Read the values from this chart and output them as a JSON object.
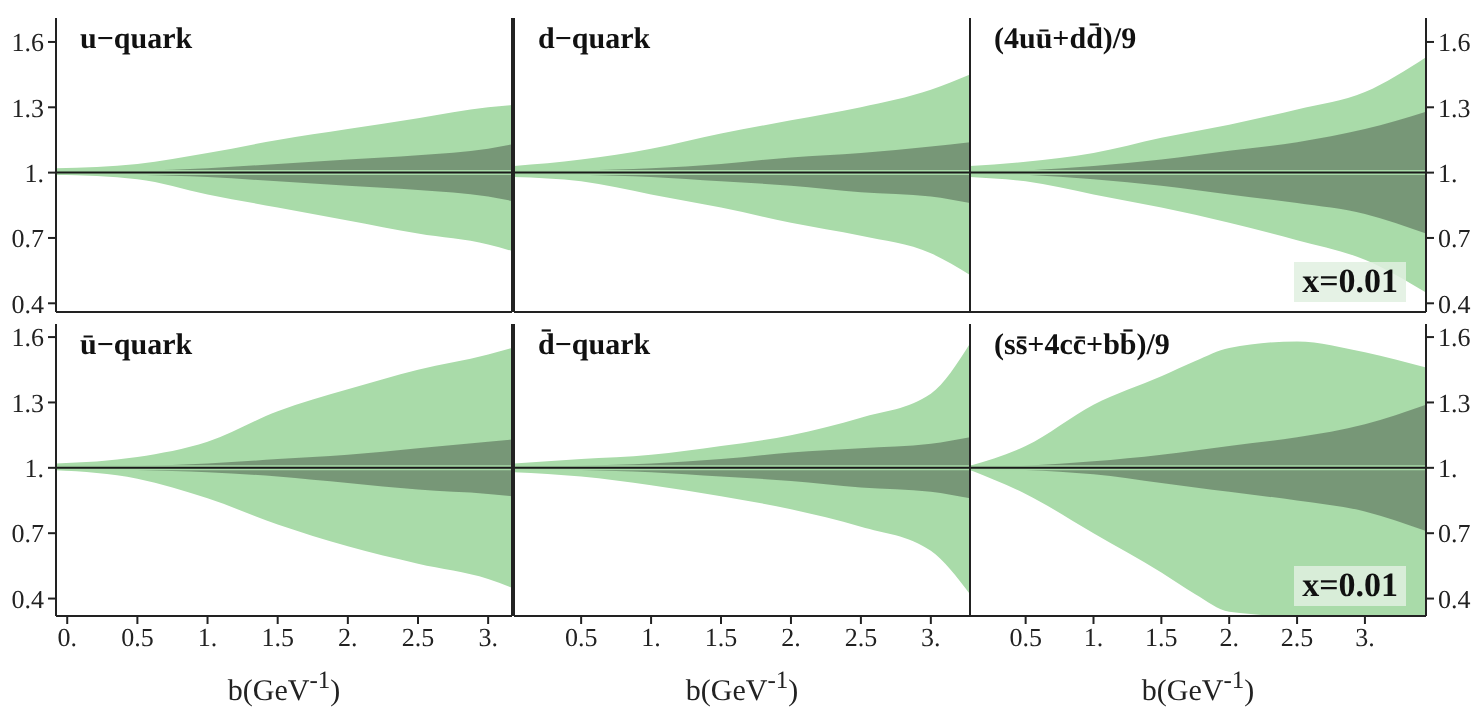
{
  "chart_data": [
    {
      "type": "line",
      "title": "u−quark",
      "x": [
        -0.08,
        0.5,
        1,
        1.5,
        2,
        2.5,
        3,
        3.17
      ],
      "xlim": [
        -0.08,
        3.17
      ],
      "xticks": [
        {
          "value": 0,
          "label": null
        },
        {
          "value": 0.5,
          "label": null
        },
        {
          "value": 1,
          "label": null
        },
        {
          "value": 1.5,
          "label": null
        },
        {
          "value": 2,
          "label": null
        },
        {
          "value": 2.5,
          "label": null
        },
        {
          "value": 3,
          "label": null
        }
      ],
      "ylim": [
        0.36,
        1.71
      ],
      "yticks": [
        0.4,
        0.7,
        {
          "value": 1,
          "label": "1."
        },
        1.3,
        1.6
      ],
      "tick_labels": "y",
      "series": [
        {
          "color": "#a9dba9",
          "values": [
            1,
            1,
            1,
            1,
            1,
            1,
            1,
            1
          ],
          "lower": [
            0.99,
            0.97,
            0.9,
            0.84,
            0.78,
            0.72,
            0.67,
            0.64
          ],
          "upper": [
            1.02,
            1.04,
            1.09,
            1.15,
            1.2,
            1.25,
            1.3,
            1.31
          ]
        },
        {
          "color": "#1a1a1a",
          "values": [
            1,
            1,
            1,
            1,
            1,
            1,
            1,
            1
          ],
          "lower": [
            1,
            0.99,
            0.98,
            0.96,
            0.94,
            0.92,
            0.89,
            0.87
          ],
          "upper": [
            1.01,
            1.01,
            1.02,
            1.04,
            1.06,
            1.08,
            1.11,
            1.13
          ]
        }
      ]
    },
    {
      "type": "line",
      "title": "d−quark",
      "x": [
        0.02,
        0.5,
        1,
        1.5,
        2,
        2.5,
        3,
        3.28
      ],
      "xlim": [
        0.02,
        3.28
      ],
      "xticks": [
        {
          "value": 0.5,
          "label": null
        },
        {
          "value": 1,
          "label": null
        },
        {
          "value": 1.5,
          "label": null
        },
        {
          "value": 2,
          "label": null
        },
        {
          "value": 2.5,
          "label": null
        },
        {
          "value": 3,
          "label": null
        }
      ],
      "ylim": [
        0.36,
        1.71
      ],
      "yticks": [
        {
          "value": 0.4,
          "label": null
        },
        {
          "value": 0.7,
          "label": null
        },
        {
          "value": 1,
          "label": null
        },
        {
          "value": 1.3,
          "label": null
        },
        {
          "value": 1.6,
          "label": null
        }
      ],
      "tick_labels": false,
      "series": [
        {
          "color": "#a9dba9",
          "values": [
            1,
            1,
            1,
            1,
            1,
            1,
            1,
            1
          ],
          "lower": [
            0.98,
            0.96,
            0.9,
            0.84,
            0.77,
            0.71,
            0.63,
            0.53
          ],
          "upper": [
            1.03,
            1.06,
            1.11,
            1.18,
            1.24,
            1.3,
            1.38,
            1.45
          ]
        },
        {
          "color": "#1a1a1a",
          "values": [
            1,
            1,
            1,
            1,
            1,
            1,
            1,
            1
          ],
          "lower": [
            1,
            0.99,
            0.98,
            0.96,
            0.94,
            0.91,
            0.89,
            0.86
          ],
          "upper": [
            1,
            1.01,
            1.02,
            1.04,
            1.07,
            1.09,
            1.12,
            1.14
          ]
        }
      ]
    },
    {
      "type": "line",
      "title": "(4uū+dd̄)/9",
      "annotations": [
        "x=0.01"
      ],
      "x": [
        0.09,
        0.5,
        1,
        1.5,
        2,
        2.5,
        3,
        3.45
      ],
      "xlim": [
        0.09,
        3.45
      ],
      "xticks": [
        {
          "value": 0.5,
          "label": null
        },
        {
          "value": 1,
          "label": null
        },
        {
          "value": 1.5,
          "label": null
        },
        {
          "value": 2,
          "label": null
        },
        {
          "value": 2.5,
          "label": null
        },
        {
          "value": 3,
          "label": null
        }
      ],
      "ylim": [
        0.36,
        1.71
      ],
      "yticks": [
        0.4,
        0.7,
        {
          "value": 1,
          "label": "1."
        },
        1.3,
        1.6
      ],
      "tick_labels": "y",
      "series": [
        {
          "color": "#a9dba9",
          "values": [
            1,
            1,
            1,
            1,
            1,
            1,
            1,
            1
          ],
          "lower": [
            0.98,
            0.96,
            0.9,
            0.84,
            0.77,
            0.69,
            0.6,
            0.45
          ],
          "upper": [
            1.03,
            1.05,
            1.09,
            1.16,
            1.22,
            1.29,
            1.37,
            1.53
          ]
        },
        {
          "color": "#1a1a1a",
          "values": [
            1,
            1,
            1,
            1,
            1,
            1,
            1,
            1
          ],
          "lower": [
            1,
            0.99,
            0.97,
            0.94,
            0.9,
            0.86,
            0.81,
            0.72
          ],
          "upper": [
            1,
            1.01,
            1.03,
            1.06,
            1.1,
            1.14,
            1.2,
            1.28
          ]
        }
      ]
    },
    {
      "type": "line",
      "title": "ū−quark",
      "xlabel": "b(GeV$^{-1}$)",
      "x": [
        -0.08,
        0.5,
        1,
        1.5,
        2,
        2.5,
        3,
        3.17
      ],
      "xlim": [
        -0.08,
        3.17
      ],
      "xticks": [
        {
          "value": 0,
          "label": "0."
        },
        0.5,
        {
          "value": 1,
          "label": "1."
        },
        1.5,
        {
          "value": 2,
          "label": "2."
        },
        2.5,
        {
          "value": 3,
          "label": "3."
        }
      ],
      "ylim": [
        0.32,
        1.66
      ],
      "yticks": [
        0.4,
        0.7,
        {
          "value": 1,
          "label": "1."
        },
        1.3,
        1.6
      ],
      "series": [
        {
          "color": "#a9dba9",
          "values": [
            1,
            1,
            1,
            1,
            1,
            1,
            1,
            1
          ],
          "lower": [
            0.99,
            0.95,
            0.86,
            0.74,
            0.64,
            0.56,
            0.49,
            0.45
          ],
          "upper": [
            1.02,
            1.05,
            1.12,
            1.26,
            1.36,
            1.45,
            1.52,
            1.55
          ]
        },
        {
          "color": "#1a1a1a",
          "values": [
            1,
            1,
            1,
            1,
            1,
            1,
            1,
            1
          ],
          "lower": [
            1,
            0.99,
            0.98,
            0.96,
            0.93,
            0.9,
            0.88,
            0.87
          ],
          "upper": [
            1.01,
            1.01,
            1.02,
            1.04,
            1.06,
            1.09,
            1.12,
            1.13
          ]
        }
      ]
    },
    {
      "type": "line",
      "title": "d̄−quark",
      "xlabel": "b(GeV$^{-1}$)",
      "x": [
        0.02,
        0.5,
        1,
        1.5,
        2,
        2.5,
        3,
        3.28
      ],
      "xlim": [
        0.02,
        3.28
      ],
      "xticks": [
        0.5,
        {
          "value": 1,
          "label": "1."
        },
        1.5,
        {
          "value": 2,
          "label": "2."
        },
        2.5,
        {
          "value": 3,
          "label": "3."
        }
      ],
      "ylim": [
        0.32,
        1.66
      ],
      "yticks": [
        {
          "value": 0.4,
          "label": null
        },
        {
          "value": 0.7,
          "label": null
        },
        {
          "value": 1,
          "label": null
        },
        {
          "value": 1.3,
          "label": null
        },
        {
          "value": 1.6,
          "label": null
        }
      ],
      "tick_labels": "x",
      "series": [
        {
          "color": "#a9dba9",
          "values": [
            1,
            1,
            1,
            1,
            1,
            1,
            1,
            1
          ],
          "lower": [
            0.98,
            0.96,
            0.92,
            0.87,
            0.81,
            0.73,
            0.62,
            0.42
          ],
          "upper": [
            1.02,
            1.04,
            1.06,
            1.1,
            1.15,
            1.23,
            1.34,
            1.57
          ]
        },
        {
          "color": "#1a1a1a",
          "values": [
            1,
            1,
            1,
            1,
            1,
            1,
            1,
            1
          ],
          "lower": [
            1,
            0.99,
            0.98,
            0.96,
            0.94,
            0.91,
            0.89,
            0.86
          ],
          "upper": [
            1,
            1.01,
            1.02,
            1.04,
            1.07,
            1.09,
            1.11,
            1.14
          ]
        }
      ]
    },
    {
      "type": "line",
      "title": "(ss̄+4cc̄+bb̄)/9",
      "xlabel": "b(GeV$^{-1}$)",
      "annotations": [
        "x=0.01"
      ],
      "x": [
        0.09,
        0.5,
        1,
        1.5,
        1.75,
        2,
        2.5,
        3,
        3.45
      ],
      "xlim": [
        0.09,
        3.45
      ],
      "xticks": [
        0.5,
        {
          "value": 1,
          "label": "1."
        },
        1.5,
        {
          "value": 2,
          "label": "2."
        },
        2.5,
        {
          "value": 3,
          "label": "3."
        }
      ],
      "ylim": [
        0.32,
        1.66
      ],
      "yticks": [
        0.4,
        0.7,
        {
          "value": 1,
          "label": "1."
        },
        1.3,
        1.6
      ],
      "series": [
        {
          "color": "#a9dba9",
          "values": [
            1,
            1,
            1,
            1,
            1,
            1,
            1,
            1,
            1
          ],
          "lower": [
            0.99,
            0.88,
            0.7,
            0.52,
            0.42,
            0.34,
            0.32,
            0.32,
            0.32
          ],
          "upper": [
            1.01,
            1.1,
            1.29,
            1.42,
            1.49,
            1.55,
            1.58,
            1.53,
            1.46
          ]
        },
        {
          "color": "#1a1a1a",
          "values": [
            1,
            1,
            1,
            1,
            1,
            1,
            1,
            1,
            1
          ],
          "lower": [
            1,
            0.99,
            0.97,
            0.93,
            0.91,
            0.89,
            0.85,
            0.8,
            0.71
          ],
          "upper": [
            1,
            1.01,
            1.03,
            1.06,
            1.08,
            1.1,
            1.14,
            1.2,
            1.29
          ]
        }
      ]
    }
  ]
}
